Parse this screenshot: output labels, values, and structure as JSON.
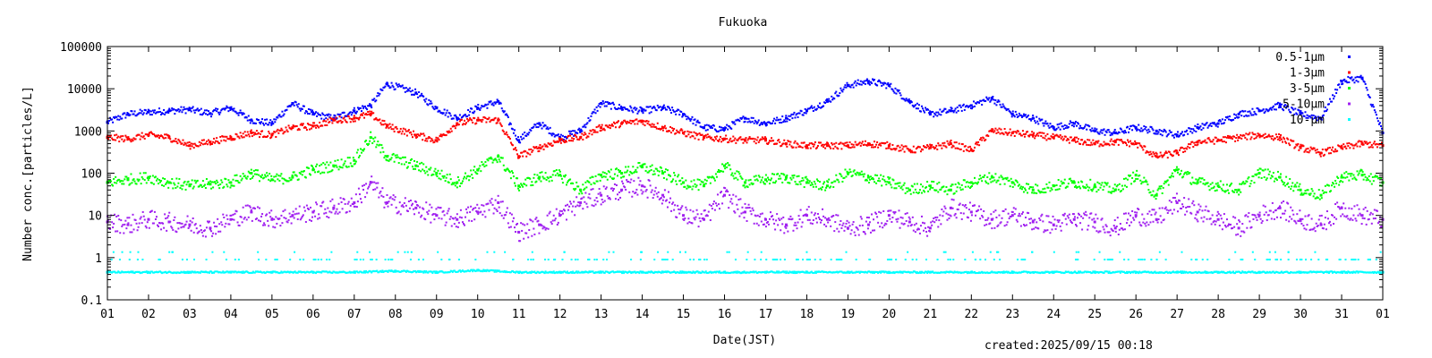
{
  "chart_data": {
    "type": "scatter",
    "title": "Fukuoka",
    "xlabel": "Date(JST)",
    "ylabel": "Number conc.[particles/L]",
    "yscale": "log",
    "ylim": [
      0.1,
      100000
    ],
    "xlim": [
      1,
      32
    ],
    "grid": false,
    "legend_position": "top-right",
    "x_tick_labels": [
      "01",
      "02",
      "03",
      "04",
      "05",
      "06",
      "07",
      "08",
      "09",
      "10",
      "11",
      "12",
      "13",
      "14",
      "15",
      "16",
      "17",
      "18",
      "19",
      "20",
      "21",
      "22",
      "23",
      "24",
      "25",
      "26",
      "27",
      "28",
      "29",
      "30",
      "31",
      "01"
    ],
    "y_tick_labels": [
      "0.1",
      "1",
      "10",
      "100",
      "1000",
      "10000",
      "100000"
    ],
    "y_ticks": [
      0.1,
      1,
      10,
      100,
      1000,
      10000,
      100000
    ],
    "series": [
      {
        "name": "0.5-1μm",
        "color": "#0000ff",
        "x": [
          1,
          1.5,
          2,
          2.5,
          3,
          3.5,
          4,
          4.5,
          5,
          5.5,
          6,
          6.5,
          7,
          7.4,
          7.8,
          8.5,
          9,
          9.5,
          10,
          10.5,
          11,
          11.5,
          12,
          12.5,
          13,
          13.5,
          14,
          14.5,
          15,
          15.5,
          16,
          16.5,
          17,
          17.5,
          18,
          18.5,
          19,
          19.5,
          20,
          20.5,
          21,
          21.5,
          22,
          22.5,
          23,
          23.5,
          24,
          24.5,
          25,
          25.5,
          26,
          26.5,
          27,
          27.5,
          28,
          28.5,
          29,
          29.5,
          30,
          30.5,
          31,
          31.5,
          32
        ],
        "y": [
          1600,
          2500,
          2800,
          3000,
          3200,
          2600,
          3500,
          1800,
          1500,
          4500,
          2500,
          2000,
          3000,
          4000,
          13000,
          8000,
          3500,
          2000,
          3500,
          5000,
          600,
          1500,
          700,
          1000,
          4500,
          3500,
          3000,
          3500,
          2500,
          1200,
          1100,
          2000,
          1500,
          2000,
          3000,
          5000,
          12000,
          15000,
          12000,
          5000,
          2500,
          3000,
          4000,
          6000,
          2500,
          2000,
          1200,
          1500,
          1000,
          900,
          1200,
          1000,
          800,
          1200,
          1500,
          2500,
          3000,
          4000,
          2500,
          2000,
          15000,
          18000,
          900
        ]
      },
      {
        "name": "1-3μm",
        "color": "#ff0000",
        "x": [
          1,
          1.5,
          2,
          2.5,
          3,
          3.5,
          4,
          4.5,
          5,
          5.5,
          6,
          6.5,
          7,
          7.4,
          7.8,
          8.5,
          9,
          9.5,
          10,
          10.5,
          11,
          11.5,
          12,
          12.5,
          13,
          13.5,
          14,
          14.5,
          15,
          15.5,
          16,
          16.5,
          17,
          17.5,
          18,
          18.5,
          19,
          19.5,
          20,
          20.5,
          21,
          21.5,
          22,
          22.5,
          23,
          23.5,
          24,
          24.5,
          25,
          25.5,
          26,
          26.5,
          27,
          27.5,
          28,
          28.5,
          29,
          29.5,
          30,
          30.5,
          31,
          31.5,
          32
        ],
        "y": [
          700,
          650,
          800,
          700,
          450,
          550,
          700,
          900,
          800,
          1200,
          1300,
          1800,
          2000,
          2500,
          1300,
          800,
          600,
          1500,
          1800,
          1800,
          250,
          400,
          600,
          700,
          1200,
          1500,
          1700,
          1200,
          900,
          700,
          650,
          600,
          600,
          500,
          450,
          450,
          450,
          500,
          450,
          350,
          400,
          500,
          350,
          1000,
          900,
          800,
          700,
          600,
          500,
          550,
          500,
          250,
          300,
          550,
          600,
          700,
          800,
          700,
          400,
          300,
          400,
          500,
          450
        ]
      },
      {
        "name": "3-5μm",
        "color": "#00ff00",
        "x": [
          1,
          1.5,
          2,
          2.5,
          3,
          3.5,
          4,
          4.5,
          5,
          5.5,
          6,
          6.5,
          7,
          7.4,
          7.8,
          8.5,
          9,
          9.5,
          10,
          10.5,
          11,
          11.5,
          12,
          12.5,
          13,
          13.5,
          14,
          14.5,
          15,
          15.5,
          16,
          16.5,
          17,
          17.5,
          18,
          18.5,
          19,
          19.5,
          20,
          20.5,
          21,
          21.5,
          22,
          22.5,
          23,
          23.5,
          24,
          24.5,
          25,
          25.5,
          26,
          26.5,
          27,
          27.5,
          28,
          28.5,
          29,
          29.5,
          30,
          30.5,
          31,
          31.5,
          32
        ],
        "y": [
          60,
          70,
          80,
          60,
          50,
          55,
          60,
          100,
          70,
          80,
          120,
          150,
          200,
          700,
          250,
          150,
          100,
          60,
          120,
          250,
          50,
          80,
          90,
          40,
          90,
          100,
          140,
          100,
          60,
          50,
          150,
          60,
          70,
          80,
          60,
          50,
          100,
          80,
          60,
          40,
          50,
          40,
          60,
          80,
          60,
          40,
          50,
          60,
          50,
          40,
          90,
          30,
          120,
          60,
          50,
          40,
          100,
          80,
          40,
          30,
          80,
          90,
          60
        ]
      },
      {
        "name": "5-10μm",
        "color": "#a020f0",
        "x": [
          1,
          1.5,
          2,
          2.5,
          3,
          3.5,
          4,
          4.5,
          5,
          5.5,
          6,
          6.5,
          7,
          7.4,
          7.8,
          8.5,
          9,
          9.5,
          10,
          10.5,
          11,
          11.5,
          12,
          12.5,
          13,
          13.5,
          14,
          14.5,
          15,
          15.5,
          16,
          16.5,
          17,
          17.5,
          18,
          18.5,
          19,
          19.5,
          20,
          20.5,
          21,
          21.5,
          22,
          22.5,
          23,
          23.5,
          24,
          24.5,
          25,
          25.5,
          26,
          26.5,
          27,
          27.5,
          28,
          28.5,
          29,
          29.5,
          30,
          30.5,
          31,
          31.5,
          32
        ],
        "y": [
          7,
          6,
          8,
          7,
          6,
          5,
          8,
          12,
          8,
          10,
          12,
          15,
          20,
          60,
          20,
          15,
          10,
          8,
          12,
          20,
          4,
          6,
          10,
          20,
          30,
          40,
          50,
          30,
          10,
          8,
          30,
          12,
          8,
          6,
          10,
          8,
          5,
          6,
          10,
          7,
          5,
          15,
          12,
          8,
          10,
          7,
          6,
          8,
          7,
          5,
          10,
          8,
          20,
          12,
          8,
          5,
          10,
          15,
          8,
          6,
          15,
          10,
          8
        ]
      },
      {
        "name": "10-μm",
        "color": "#00ffff",
        "x": [
          1,
          2,
          3,
          4,
          5,
          6,
          7,
          8,
          9,
          10,
          11,
          12,
          13,
          14,
          15,
          16,
          17,
          18,
          19,
          20,
          21,
          22,
          23,
          24,
          25,
          26,
          27,
          28,
          29,
          30,
          31,
          32
        ],
        "y": [
          0.45,
          0.45,
          0.45,
          0.45,
          0.45,
          0.45,
          0.45,
          0.48,
          0.45,
          0.5,
          0.45,
          0.45,
          0.45,
          0.45,
          0.45,
          0.45,
          0.45,
          0.45,
          0.45,
          0.45,
          0.45,
          0.45,
          0.45,
          0.45,
          0.45,
          0.45,
          0.45,
          0.45,
          0.45,
          0.45,
          0.45,
          0.45
        ]
      }
    ]
  },
  "footer": {
    "created": "created:2025/09/15 00:18"
  }
}
